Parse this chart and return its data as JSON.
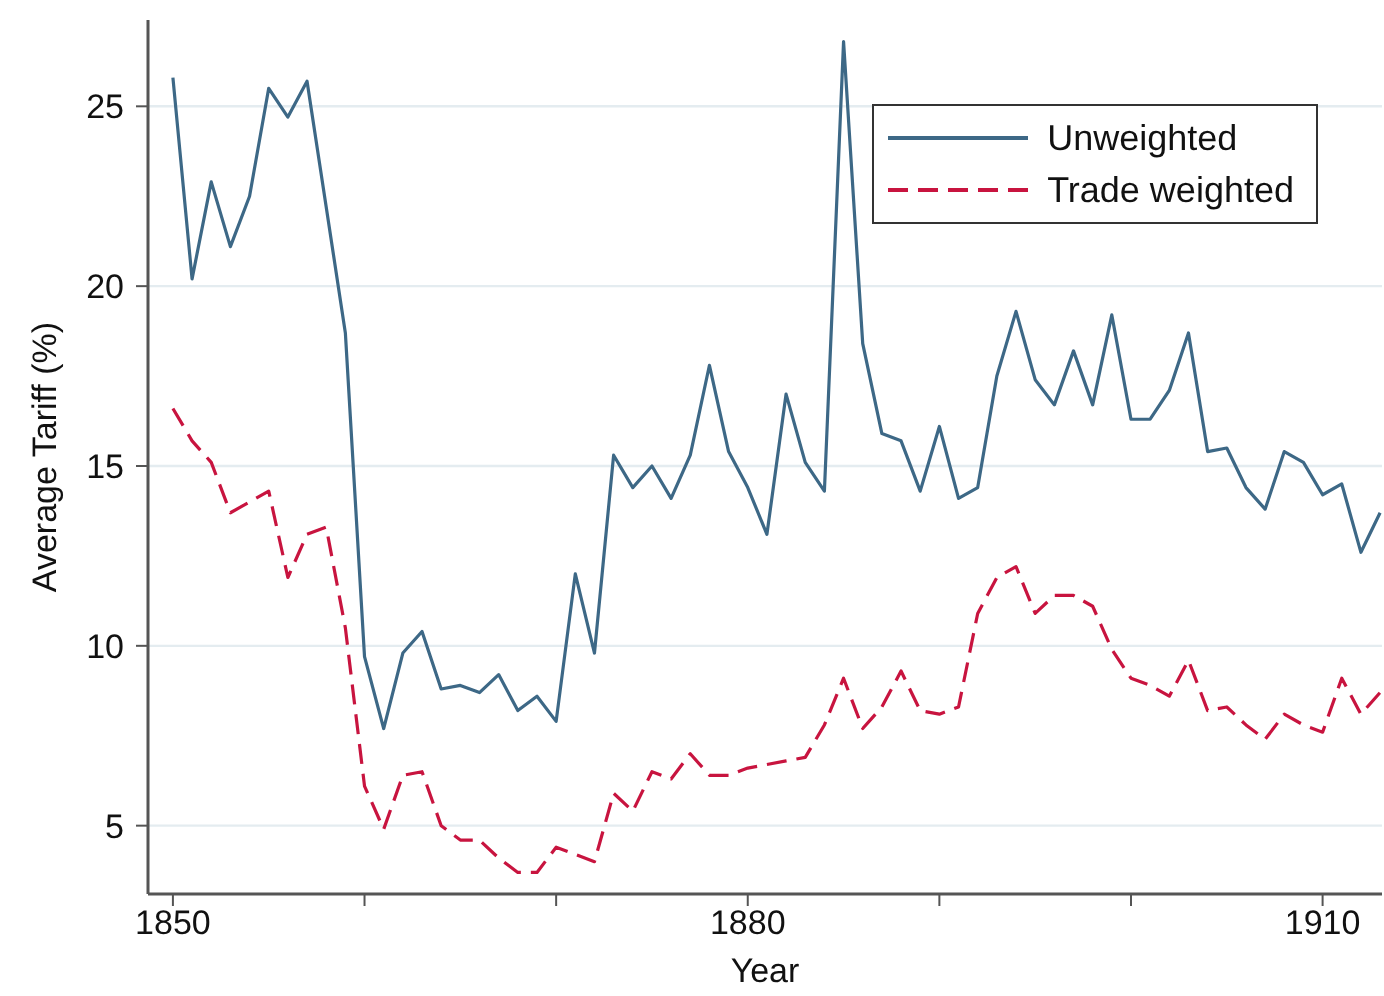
{
  "chart_data": {
    "type": "line",
    "xlabel": "Year",
    "ylabel": "Average Tariff (%)",
    "x": [
      1850,
      1851,
      1852,
      1853,
      1854,
      1855,
      1856,
      1857,
      1858,
      1859,
      1860,
      1861,
      1862,
      1863,
      1864,
      1865,
      1866,
      1867,
      1868,
      1869,
      1870,
      1871,
      1872,
      1873,
      1874,
      1875,
      1876,
      1877,
      1878,
      1879,
      1880,
      1881,
      1882,
      1883,
      1884,
      1885,
      1886,
      1887,
      1888,
      1889,
      1890,
      1891,
      1892,
      1893,
      1894,
      1895,
      1896,
      1897,
      1898,
      1899,
      1900,
      1901,
      1902,
      1903,
      1904,
      1905,
      1906,
      1907,
      1908,
      1909,
      1910,
      1911,
      1912,
      1913
    ],
    "series": [
      {
        "name": "Unweighted",
        "color": "#3d6886",
        "line_style": "solid",
        "values": [
          25.8,
          20.2,
          22.9,
          21.1,
          22.5,
          25.5,
          24.7,
          25.7,
          22.2,
          18.7,
          9.7,
          7.7,
          9.8,
          10.4,
          8.8,
          8.9,
          8.7,
          9.2,
          8.2,
          8.6,
          7.9,
          12.0,
          9.8,
          15.3,
          14.4,
          15.0,
          14.1,
          15.3,
          17.8,
          15.4,
          14.4,
          13.1,
          17.0,
          15.1,
          14.3,
          26.8,
          18.4,
          15.9,
          15.7,
          14.3,
          16.1,
          14.1,
          14.4,
          17.5,
          19.3,
          17.4,
          16.7,
          18.2,
          16.7,
          19.2,
          16.3,
          16.3,
          17.1,
          18.7,
          15.4,
          15.5,
          14.4,
          13.8,
          15.4,
          15.1,
          14.2,
          14.5,
          12.6,
          13.7
        ]
      },
      {
        "name": "Trade weighted",
        "color": "#c8143f",
        "line_style": "dashed",
        "values": [
          16.6,
          15.7,
          15.1,
          13.7,
          14.0,
          14.3,
          11.9,
          13.1,
          13.3,
          10.5,
          6.1,
          4.9,
          6.4,
          6.5,
          5.0,
          4.6,
          4.6,
          4.1,
          3.7,
          3.7,
          4.4,
          4.2,
          4.0,
          5.9,
          5.4,
          6.5,
          6.3,
          7.0,
          6.4,
          6.4,
          6.6,
          6.7,
          6.8,
          6.9,
          7.8,
          9.1,
          7.7,
          8.3,
          9.3,
          8.2,
          8.1,
          8.3,
          10.9,
          11.9,
          12.2,
          10.9,
          11.4,
          11.4,
          11.1,
          9.9,
          9.1,
          8.9,
          8.6,
          9.6,
          8.2,
          8.3,
          7.8,
          7.4,
          8.1,
          7.8,
          7.6,
          9.1,
          8.1,
          8.7
        ]
      }
    ],
    "xlim": [
      1848.7,
      1913.1
    ],
    "xticks": [
      1850,
      {
        "value": 1860,
        "label": null
      },
      {
        "value": 1870,
        "label": null
      },
      1880,
      {
        "value": 1890,
        "label": null
      },
      {
        "value": 1900,
        "label": null
      },
      1910
    ],
    "ylim": [
      3.1,
      27.4
    ],
    "yticks": [
      5,
      10,
      15,
      20,
      25
    ],
    "grid": "y",
    "legend": "top right"
  }
}
